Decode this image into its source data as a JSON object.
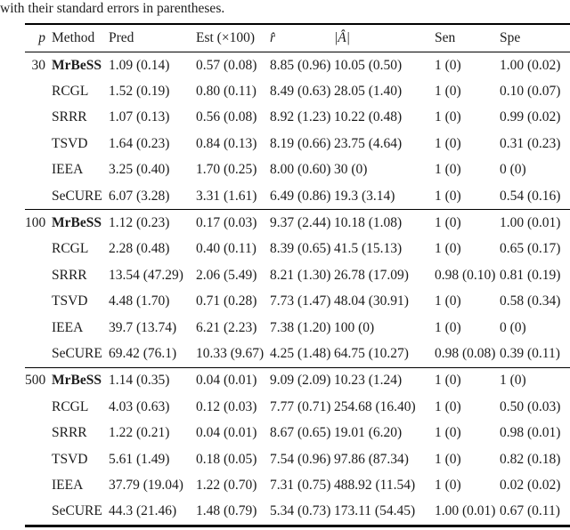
{
  "caption": "with their standard errors in parentheses.",
  "table": {
    "headers": {
      "p": "p",
      "method": "Method",
      "pred": "Pred",
      "est": "Est (×100)",
      "r_hat": "r̂",
      "a_hat": "|Â|",
      "sen": "Sen",
      "spe": "Spe"
    },
    "groups": [
      {
        "p": "30",
        "rows": [
          {
            "method": "MrBeSS",
            "pred": "1.09 (0.14)",
            "est": "0.57 (0.08)",
            "r_hat": "8.85 (0.96)",
            "a_hat": "10.05 (0.50)",
            "sen": "1 (0)",
            "spe": "1.00 (0.02)"
          },
          {
            "method": "RCGL",
            "pred": "1.52 (0.19)",
            "est": "0.80 (0.11)",
            "r_hat": "8.49 (0.63)",
            "a_hat": "28.05 (1.40)",
            "sen": "1 (0)",
            "spe": "0.10 (0.07)"
          },
          {
            "method": "SRRR",
            "pred": "1.07 (0.13)",
            "est": "0.56 (0.08)",
            "r_hat": "8.92 (1.23)",
            "a_hat": "10.22 (0.48)",
            "sen": "1 (0)",
            "spe": "0.99 (0.02)"
          },
          {
            "method": "TSVD",
            "pred": "1.64 (0.23)",
            "est": "0.84 (0.13)",
            "r_hat": "8.19 (0.66)",
            "a_hat": "23.75 (4.64)",
            "sen": "1 (0)",
            "spe": "0.31 (0.23)"
          },
          {
            "method": "IEEA",
            "pred": "3.25 (0.40)",
            "est": "1.70 (0.25)",
            "r_hat": "8.00 (0.60)",
            "a_hat": "30 (0)",
            "sen": "1 (0)",
            "spe": "0 (0)"
          },
          {
            "method": "SeCURE",
            "pred": "6.07 (3.28)",
            "est": "3.31 (1.61)",
            "r_hat": "6.49 (0.86)",
            "a_hat": "19.3 (3.14)",
            "sen": "1 (0)",
            "spe": "0.54 (0.16)"
          }
        ]
      },
      {
        "p": "100",
        "rows": [
          {
            "method": "MrBeSS",
            "pred": "1.12 (0.23)",
            "est": "0.17 (0.03)",
            "r_hat": "9.37 (2.44)",
            "a_hat": "10.18 (1.08)",
            "sen": "1 (0)",
            "spe": "1.00 (0.01)"
          },
          {
            "method": "RCGL",
            "pred": "2.28 (0.48)",
            "est": "0.40 (0.11)",
            "r_hat": "8.39 (0.65)",
            "a_hat": "41.5 (15.13)",
            "sen": "1 (0)",
            "spe": "0.65 (0.17)"
          },
          {
            "method": "SRRR",
            "pred": "13.54 (47.29)",
            "est": "2.06 (5.49)",
            "r_hat": "8.21 (1.30)",
            "a_hat": "26.78 (17.09)",
            "sen": "0.98 (0.10)",
            "spe": "0.81 (0.19)"
          },
          {
            "method": "TSVD",
            "pred": "4.48 (1.70)",
            "est": "0.71 (0.28)",
            "r_hat": "7.73 (1.47)",
            "a_hat": "48.04 (30.91)",
            "sen": "1 (0)",
            "spe": "0.58 (0.34)"
          },
          {
            "method": "IEEA",
            "pred": "39.7 (13.74)",
            "est": "6.21 (2.23)",
            "r_hat": "7.38 (1.20)",
            "a_hat": "100 (0)",
            "sen": "1 (0)",
            "spe": "0 (0)"
          },
          {
            "method": "SeCURE",
            "pred": "69.42 (76.1)",
            "est": "10.33 (9.67)",
            "r_hat": "4.25 (1.48)",
            "a_hat": "64.75 (10.27)",
            "sen": "0.98 (0.08)",
            "spe": "0.39 (0.11)"
          }
        ]
      },
      {
        "p": "500",
        "rows": [
          {
            "method": "MrBeSS",
            "pred": "1.14 (0.35)",
            "est": "0.04 (0.01)",
            "r_hat": "9.09 (2.09)",
            "a_hat": "10.23 (1.24)",
            "sen": "1 (0)",
            "spe": "1 (0)"
          },
          {
            "method": "RCGL",
            "pred": "4.03 (0.63)",
            "est": "0.12 (0.03)",
            "r_hat": "7.77 (0.71)",
            "a_hat": "254.68 (16.40)",
            "sen": "1 (0)",
            "spe": "0.50 (0.03)"
          },
          {
            "method": "SRRR",
            "pred": "1.22 (0.21)",
            "est": "0.04 (0.01)",
            "r_hat": "8.67 (0.65)",
            "a_hat": "19.01 (6.20)",
            "sen": "1 (0)",
            "spe": "0.98 (0.01)"
          },
          {
            "method": "TSVD",
            "pred": "5.61 (1.49)",
            "est": "0.18 (0.05)",
            "r_hat": "7.54 (0.96)",
            "a_hat": "97.86 (87.34)",
            "sen": "1 (0)",
            "spe": "0.82 (0.18)"
          },
          {
            "method": "IEEA",
            "pred": "37.79 (19.04)",
            "est": "1.22 (0.70)",
            "r_hat": "7.31 (0.75)",
            "a_hat": "488.92 (11.54)",
            "sen": "1 (0)",
            "spe": "0.02 (0.02)"
          },
          {
            "method": "SeCURE",
            "pred": "44.3 (21.46)",
            "est": "1.48 (0.79)",
            "r_hat": "5.34 (0.73)",
            "a_hat": "173.11 (54.45)",
            "sen": "1.00 (0.01)",
            "spe": "0.67 (0.11)"
          }
        ]
      }
    ]
  }
}
